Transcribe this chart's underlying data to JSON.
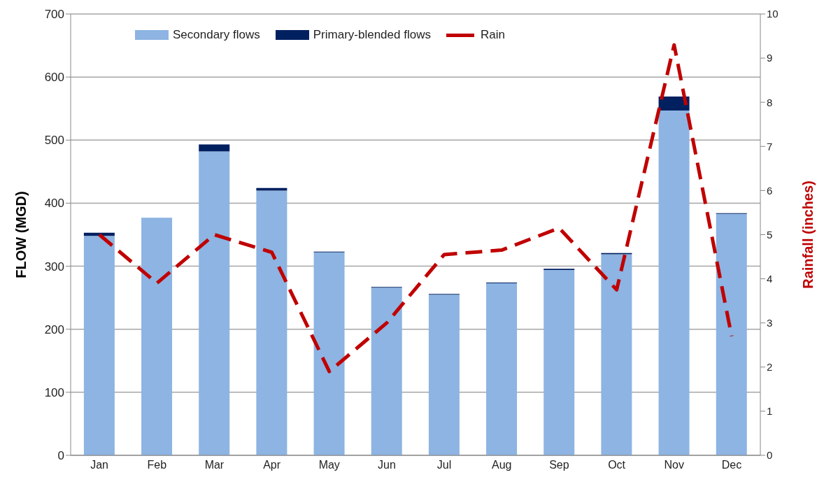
{
  "chart_data": {
    "type": "bar",
    "stacked": true,
    "categories": [
      "Jan",
      "Feb",
      "Mar",
      "Apr",
      "May",
      "Jun",
      "Jul",
      "Aug",
      "Sep",
      "Oct",
      "Nov",
      "Dec"
    ],
    "series": [
      {
        "name": "Secondary flows",
        "color": "#8db4e2",
        "values": [
          348,
          377,
          482,
          420,
          322,
          266,
          255,
          273,
          294,
          319,
          547,
          383
        ]
      },
      {
        "name": "Primary-blended flows",
        "color": "#002060",
        "values": [
          5,
          0,
          11,
          4,
          1,
          1,
          1,
          1,
          2,
          2,
          22,
          1
        ]
      },
      {
        "name": "Rain",
        "type": "line",
        "axis": "y2",
        "color": "#c00000",
        "line_style": "dashed",
        "marker": "none",
        "values": [
          5.0,
          3.9,
          5.0,
          4.6,
          1.9,
          3.0,
          4.55,
          4.65,
          5.15,
          3.75,
          9.3,
          2.7
        ]
      }
    ],
    "ylabel": "FLOW (MGD)",
    "y2label": "Rainfall (inches)",
    "ylim": [
      0,
      700
    ],
    "yticks": [
      0,
      100,
      200,
      300,
      400,
      500,
      600,
      700
    ],
    "y2lim": [
      0,
      10
    ],
    "y2ticks": [
      0,
      1,
      2,
      3,
      4,
      5,
      6,
      7,
      8,
      9,
      10
    ],
    "grid": "y",
    "legend": "top"
  }
}
